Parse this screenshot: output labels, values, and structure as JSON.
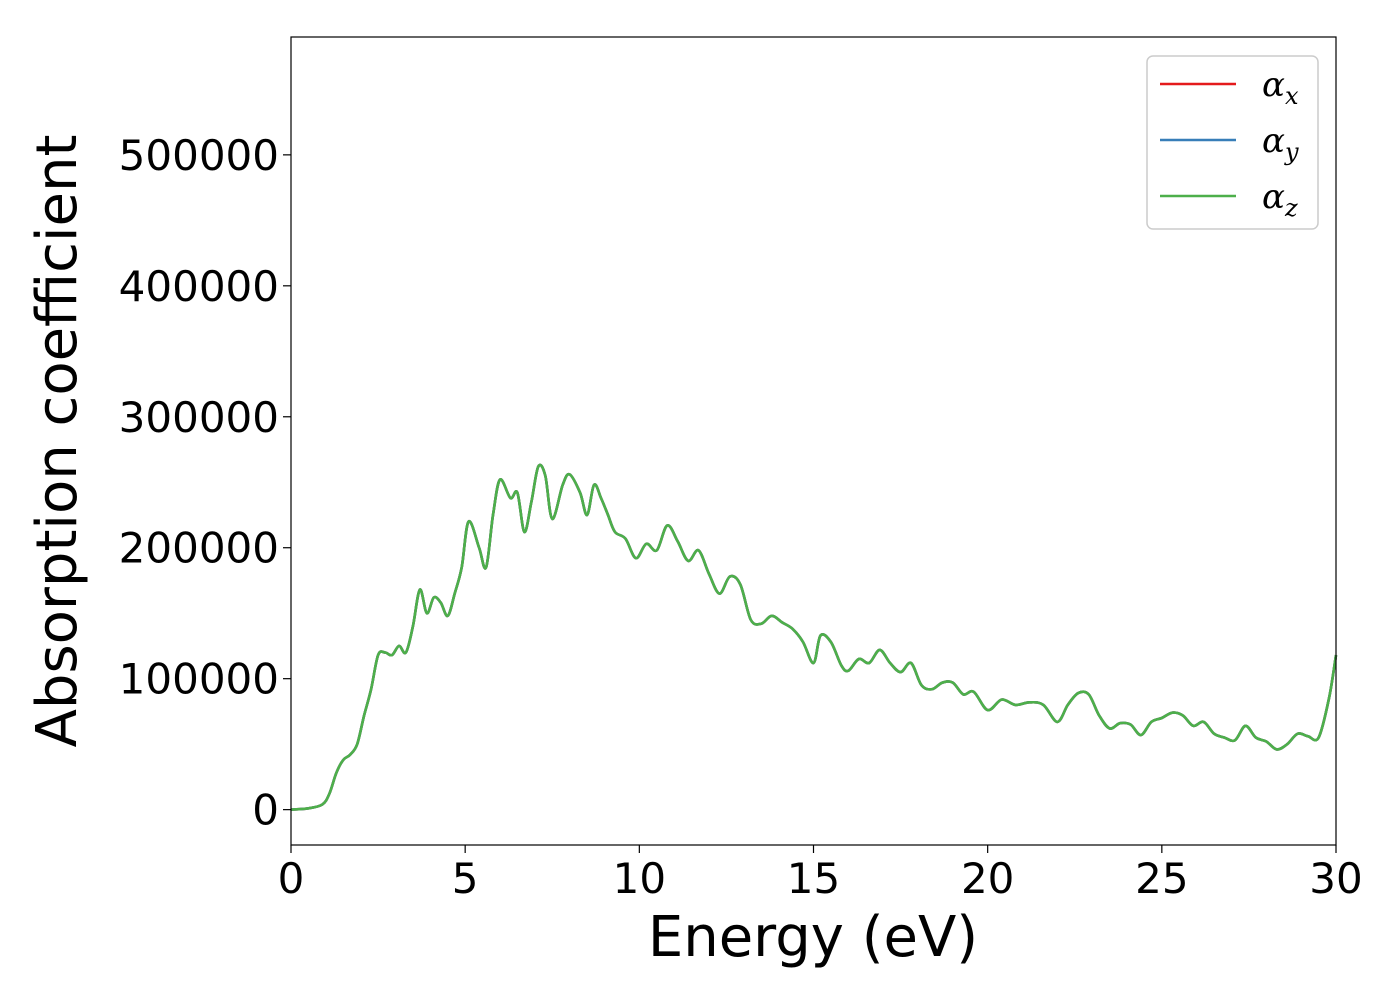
{
  "chart_data": {
    "type": "line",
    "xlabel": "Energy (eV)",
    "ylabel": "Absorption coefficient",
    "xlim": [
      0,
      30
    ],
    "ylim": [
      -27000,
      590000
    ],
    "xticks": [
      0,
      5,
      10,
      15,
      20,
      25,
      30
    ],
    "yticks": [
      0,
      100000,
      200000,
      300000,
      400000,
      500000
    ],
    "grid": false,
    "legend_position": "top-right",
    "x": [
      0,
      0.5,
      0.9,
      1.1,
      1.3,
      1.5,
      1.7,
      1.9,
      2.1,
      2.3,
      2.5,
      2.7,
      2.9,
      3.1,
      3.3,
      3.5,
      3.7,
      3.9,
      4.1,
      4.3,
      4.5,
      4.7,
      4.9,
      5.1,
      5.4,
      5.6,
      5.8,
      6.0,
      6.3,
      6.5,
      6.7,
      6.9,
      7.1,
      7.3,
      7.5,
      7.8,
      8.0,
      8.3,
      8.5,
      8.7,
      8.9,
      9.1,
      9.3,
      9.6,
      9.9,
      10.2,
      10.5,
      10.8,
      11.1,
      11.4,
      11.7,
      12.0,
      12.3,
      12.6,
      12.9,
      13.2,
      13.5,
      13.8,
      14.1,
      14.4,
      14.7,
      15.0,
      15.2,
      15.5,
      15.8,
      16.0,
      16.3,
      16.6,
      16.9,
      17.2,
      17.5,
      17.8,
      18.1,
      18.4,
      18.7,
      19.0,
      19.3,
      19.6,
      20.0,
      20.4,
      20.8,
      21.2,
      21.6,
      22.0,
      22.3,
      22.6,
      22.9,
      23.2,
      23.5,
      23.8,
      24.1,
      24.4,
      24.7,
      25.0,
      25.3,
      25.6,
      25.9,
      26.2,
      26.5,
      26.8,
      27.1,
      27.4,
      27.7,
      28.0,
      28.3,
      28.6,
      28.9,
      29.2,
      29.5,
      29.8,
      30.0
    ],
    "series": [
      {
        "name": "α",
        "sub": "x",
        "color": "#e41a1c",
        "values": [
          0,
          1000,
          4000,
          12000,
          28000,
          38000,
          42000,
          50000,
          72000,
          92000,
          118000,
          120000,
          118000,
          125000,
          120000,
          140000,
          168000,
          150000,
          162000,
          158000,
          148000,
          165000,
          185000,
          220000,
          200000,
          185000,
          225000,
          252000,
          238000,
          242000,
          212000,
          235000,
          262000,
          255000,
          222000,
          248000,
          256000,
          242000,
          225000,
          248000,
          238000,
          225000,
          212000,
          207000,
          192000,
          203000,
          198000,
          217000,
          205000,
          190000,
          198000,
          180000,
          165000,
          178000,
          172000,
          145000,
          142000,
          148000,
          143000,
          138000,
          128000,
          112000,
          133000,
          128000,
          110000,
          106000,
          115000,
          112000,
          122000,
          112000,
          105000,
          112000,
          95000,
          92000,
          97000,
          97000,
          88000,
          90000,
          76000,
          84000,
          80000,
          82000,
          80000,
          67000,
          80000,
          89000,
          88000,
          72000,
          62000,
          66000,
          65000,
          57000,
          67000,
          70000,
          74000,
          72000,
          64000,
          67000,
          58000,
          55000,
          53000,
          64000,
          55000,
          52000,
          46000,
          50000,
          58000,
          56000,
          55000,
          85000,
          118000
        ]
      },
      {
        "name": "α",
        "sub": "y",
        "color": "#377eb8",
        "values": [
          0,
          1000,
          4000,
          12000,
          28000,
          38000,
          42000,
          50000,
          72000,
          92000,
          118000,
          120000,
          118000,
          125000,
          120000,
          140000,
          168000,
          150000,
          162000,
          158000,
          148000,
          165000,
          185000,
          220000,
          200000,
          185000,
          225000,
          252000,
          238000,
          242000,
          212000,
          235000,
          262000,
          255000,
          222000,
          248000,
          256000,
          242000,
          225000,
          248000,
          238000,
          225000,
          212000,
          207000,
          192000,
          203000,
          198000,
          217000,
          205000,
          190000,
          198000,
          180000,
          165000,
          178000,
          172000,
          145000,
          142000,
          148000,
          143000,
          138000,
          128000,
          112000,
          133000,
          128000,
          110000,
          106000,
          115000,
          112000,
          122000,
          112000,
          105000,
          112000,
          95000,
          92000,
          97000,
          97000,
          88000,
          90000,
          76000,
          84000,
          80000,
          82000,
          80000,
          67000,
          80000,
          89000,
          88000,
          72000,
          62000,
          66000,
          65000,
          57000,
          67000,
          70000,
          74000,
          72000,
          64000,
          67000,
          58000,
          55000,
          53000,
          64000,
          55000,
          52000,
          46000,
          50000,
          58000,
          56000,
          55000,
          85000,
          118000
        ]
      },
      {
        "name": "α",
        "sub": "z",
        "color": "#4daf4a",
        "values": [
          0,
          1000,
          4000,
          12000,
          28000,
          38000,
          42000,
          50000,
          72000,
          92000,
          118000,
          120000,
          118000,
          125000,
          120000,
          140000,
          168000,
          150000,
          162000,
          158000,
          148000,
          165000,
          185000,
          220000,
          200000,
          185000,
          225000,
          252000,
          238000,
          242000,
          212000,
          235000,
          262000,
          255000,
          222000,
          248000,
          256000,
          242000,
          225000,
          248000,
          238000,
          225000,
          212000,
          207000,
          192000,
          203000,
          198000,
          217000,
          205000,
          190000,
          198000,
          180000,
          165000,
          178000,
          172000,
          145000,
          142000,
          148000,
          143000,
          138000,
          128000,
          112000,
          133000,
          128000,
          110000,
          106000,
          115000,
          112000,
          122000,
          112000,
          105000,
          112000,
          95000,
          92000,
          97000,
          97000,
          88000,
          90000,
          76000,
          84000,
          80000,
          82000,
          80000,
          67000,
          80000,
          89000,
          88000,
          72000,
          62000,
          66000,
          65000,
          57000,
          67000,
          70000,
          74000,
          72000,
          64000,
          67000,
          58000,
          55000,
          53000,
          64000,
          55000,
          52000,
          46000,
          50000,
          58000,
          56000,
          55000,
          85000,
          118000
        ]
      }
    ]
  }
}
